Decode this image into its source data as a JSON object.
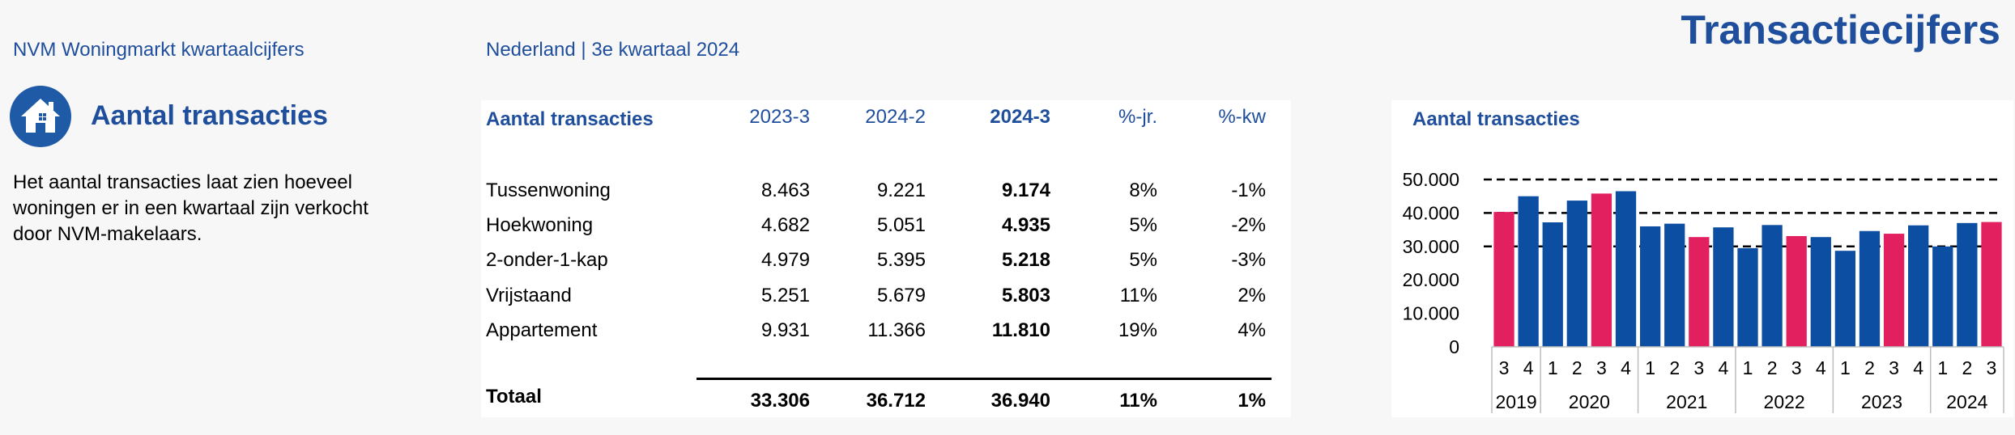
{
  "header": {
    "left": "NVM Woningmarkt kwartaalcijfers",
    "middle": "Nederland | 3e kwartaal 2024",
    "title": "Transactiecijfers"
  },
  "section": {
    "icon": "house-icon",
    "title": "Aantal transacties",
    "description": "Het aantal transacties laat zien hoeveel woningen er in een kwartaal zijn verkocht door NVM-makelaars."
  },
  "table": {
    "columns": [
      "Aantal transacties",
      "2023-3",
      "2024-2",
      "2024-3",
      "%-jr.",
      "%-kw"
    ],
    "rows": [
      {
        "label": "Tussenwoning",
        "c1": "8.463",
        "c2": "9.221",
        "c3": "9.174",
        "c4": "8%",
        "c5": "-1%"
      },
      {
        "label": "Hoekwoning",
        "c1": "4.682",
        "c2": "5.051",
        "c3": "4.935",
        "c4": "5%",
        "c5": "-2%"
      },
      {
        "label": "2-onder-1-kap",
        "c1": "4.979",
        "c2": "5.395",
        "c3": "5.218",
        "c4": "5%",
        "c5": "-3%"
      },
      {
        "label": "Vrijstaand",
        "c1": "5.251",
        "c2": "5.679",
        "c3": "5.803",
        "c4": "11%",
        "c5": "2%"
      },
      {
        "label": "Appartement",
        "c1": "9.931",
        "c2": "11.366",
        "c3": "11.810",
        "c4": "19%",
        "c5": "4%"
      }
    ],
    "total": {
      "label": "Totaal",
      "c1": "33.306",
      "c2": "36.712",
      "c3": "36.940",
      "c4": "11%",
      "c5": "1%"
    }
  },
  "colors": {
    "accent": "#1f4e9c",
    "bar_blue": "#0b4ea2",
    "bar_pink": "#e3205f"
  },
  "chart_data": {
    "type": "bar",
    "title": "Aantal transacties",
    "ylim": [
      0,
      50000
    ],
    "yticks": [
      "0",
      "10.000",
      "20.000",
      "30.000",
      "40.000",
      "50.000"
    ],
    "ytick_values": [
      0,
      10000,
      20000,
      30000,
      40000,
      50000
    ],
    "reference_lines": [
      50000,
      40000,
      30000
    ],
    "categories": [
      "3",
      "4",
      "1",
      "2",
      "3",
      "4",
      "1",
      "2",
      "3",
      "4",
      "1",
      "2",
      "3",
      "4",
      "1",
      "2",
      "3",
      "4",
      "1",
      "2",
      "3"
    ],
    "years": [
      {
        "label": "2019",
        "count": 2
      },
      {
        "label": "2020",
        "count": 4
      },
      {
        "label": "2021",
        "count": 4
      },
      {
        "label": "2022",
        "count": 4
      },
      {
        "label": "2023",
        "count": 4
      },
      {
        "label": "2024",
        "count": 3
      }
    ],
    "values": [
      40300,
      45000,
      37200,
      43700,
      45800,
      46500,
      36000,
      36800,
      32800,
      35700,
      29500,
      36400,
      33100,
      32800,
      28700,
      34600,
      33800,
      36300,
      30000,
      37000,
      37300
    ],
    "highlight": [
      0,
      4,
      8,
      12,
      16,
      20
    ]
  }
}
